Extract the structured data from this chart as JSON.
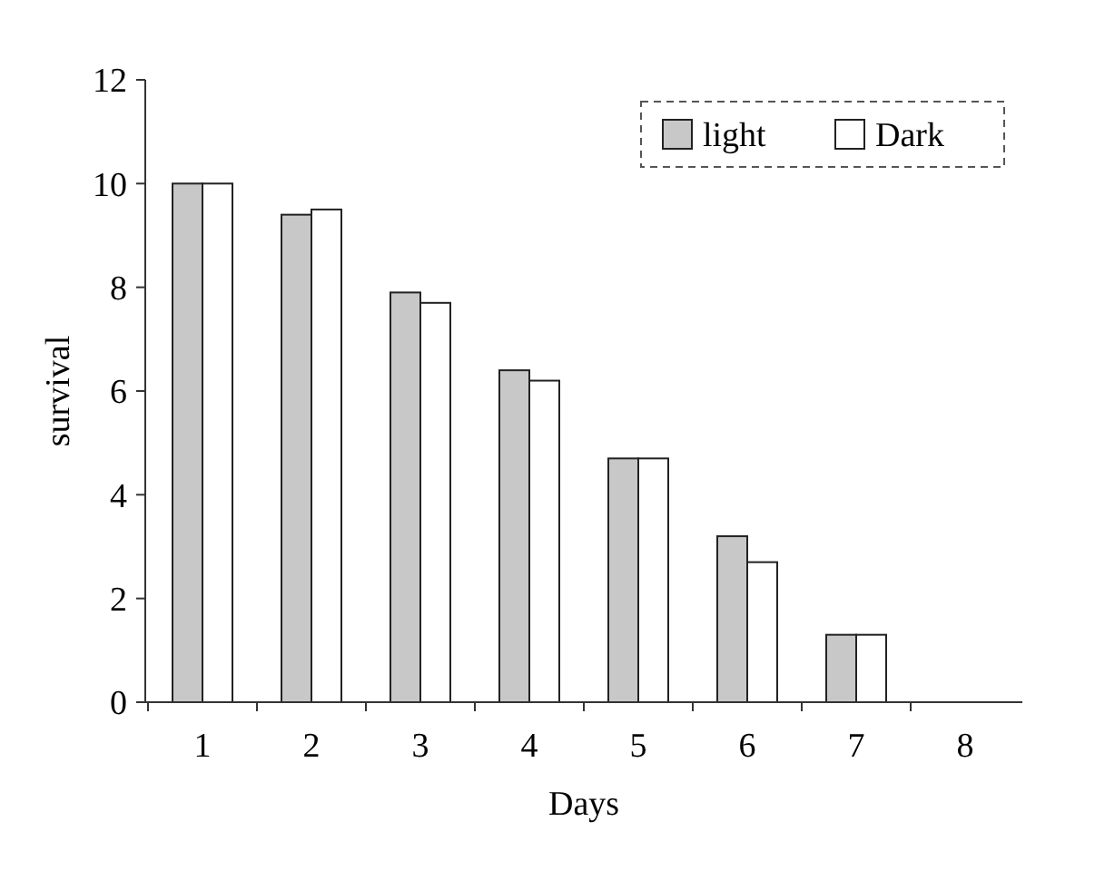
{
  "chart_data": {
    "type": "bar",
    "xlabel": "Days",
    "ylabel": "survival",
    "categories": [
      "1",
      "2",
      "3",
      "4",
      "5",
      "6",
      "7",
      "8"
    ],
    "series": [
      {
        "name": "light",
        "color": "#c8c8c8",
        "values": [
          10,
          9.4,
          7.9,
          6.4,
          4.7,
          3.2,
          1.3,
          null
        ]
      },
      {
        "name": "Dark",
        "color": "#ffffff",
        "values": [
          10,
          9.5,
          7.7,
          6.2,
          4.7,
          2.7,
          1.3,
          null
        ]
      }
    ],
    "ylim": [
      0,
      12
    ],
    "yticks": [
      0,
      2,
      4,
      6,
      8,
      10,
      12
    ],
    "grid": false,
    "legend": "top right"
  }
}
